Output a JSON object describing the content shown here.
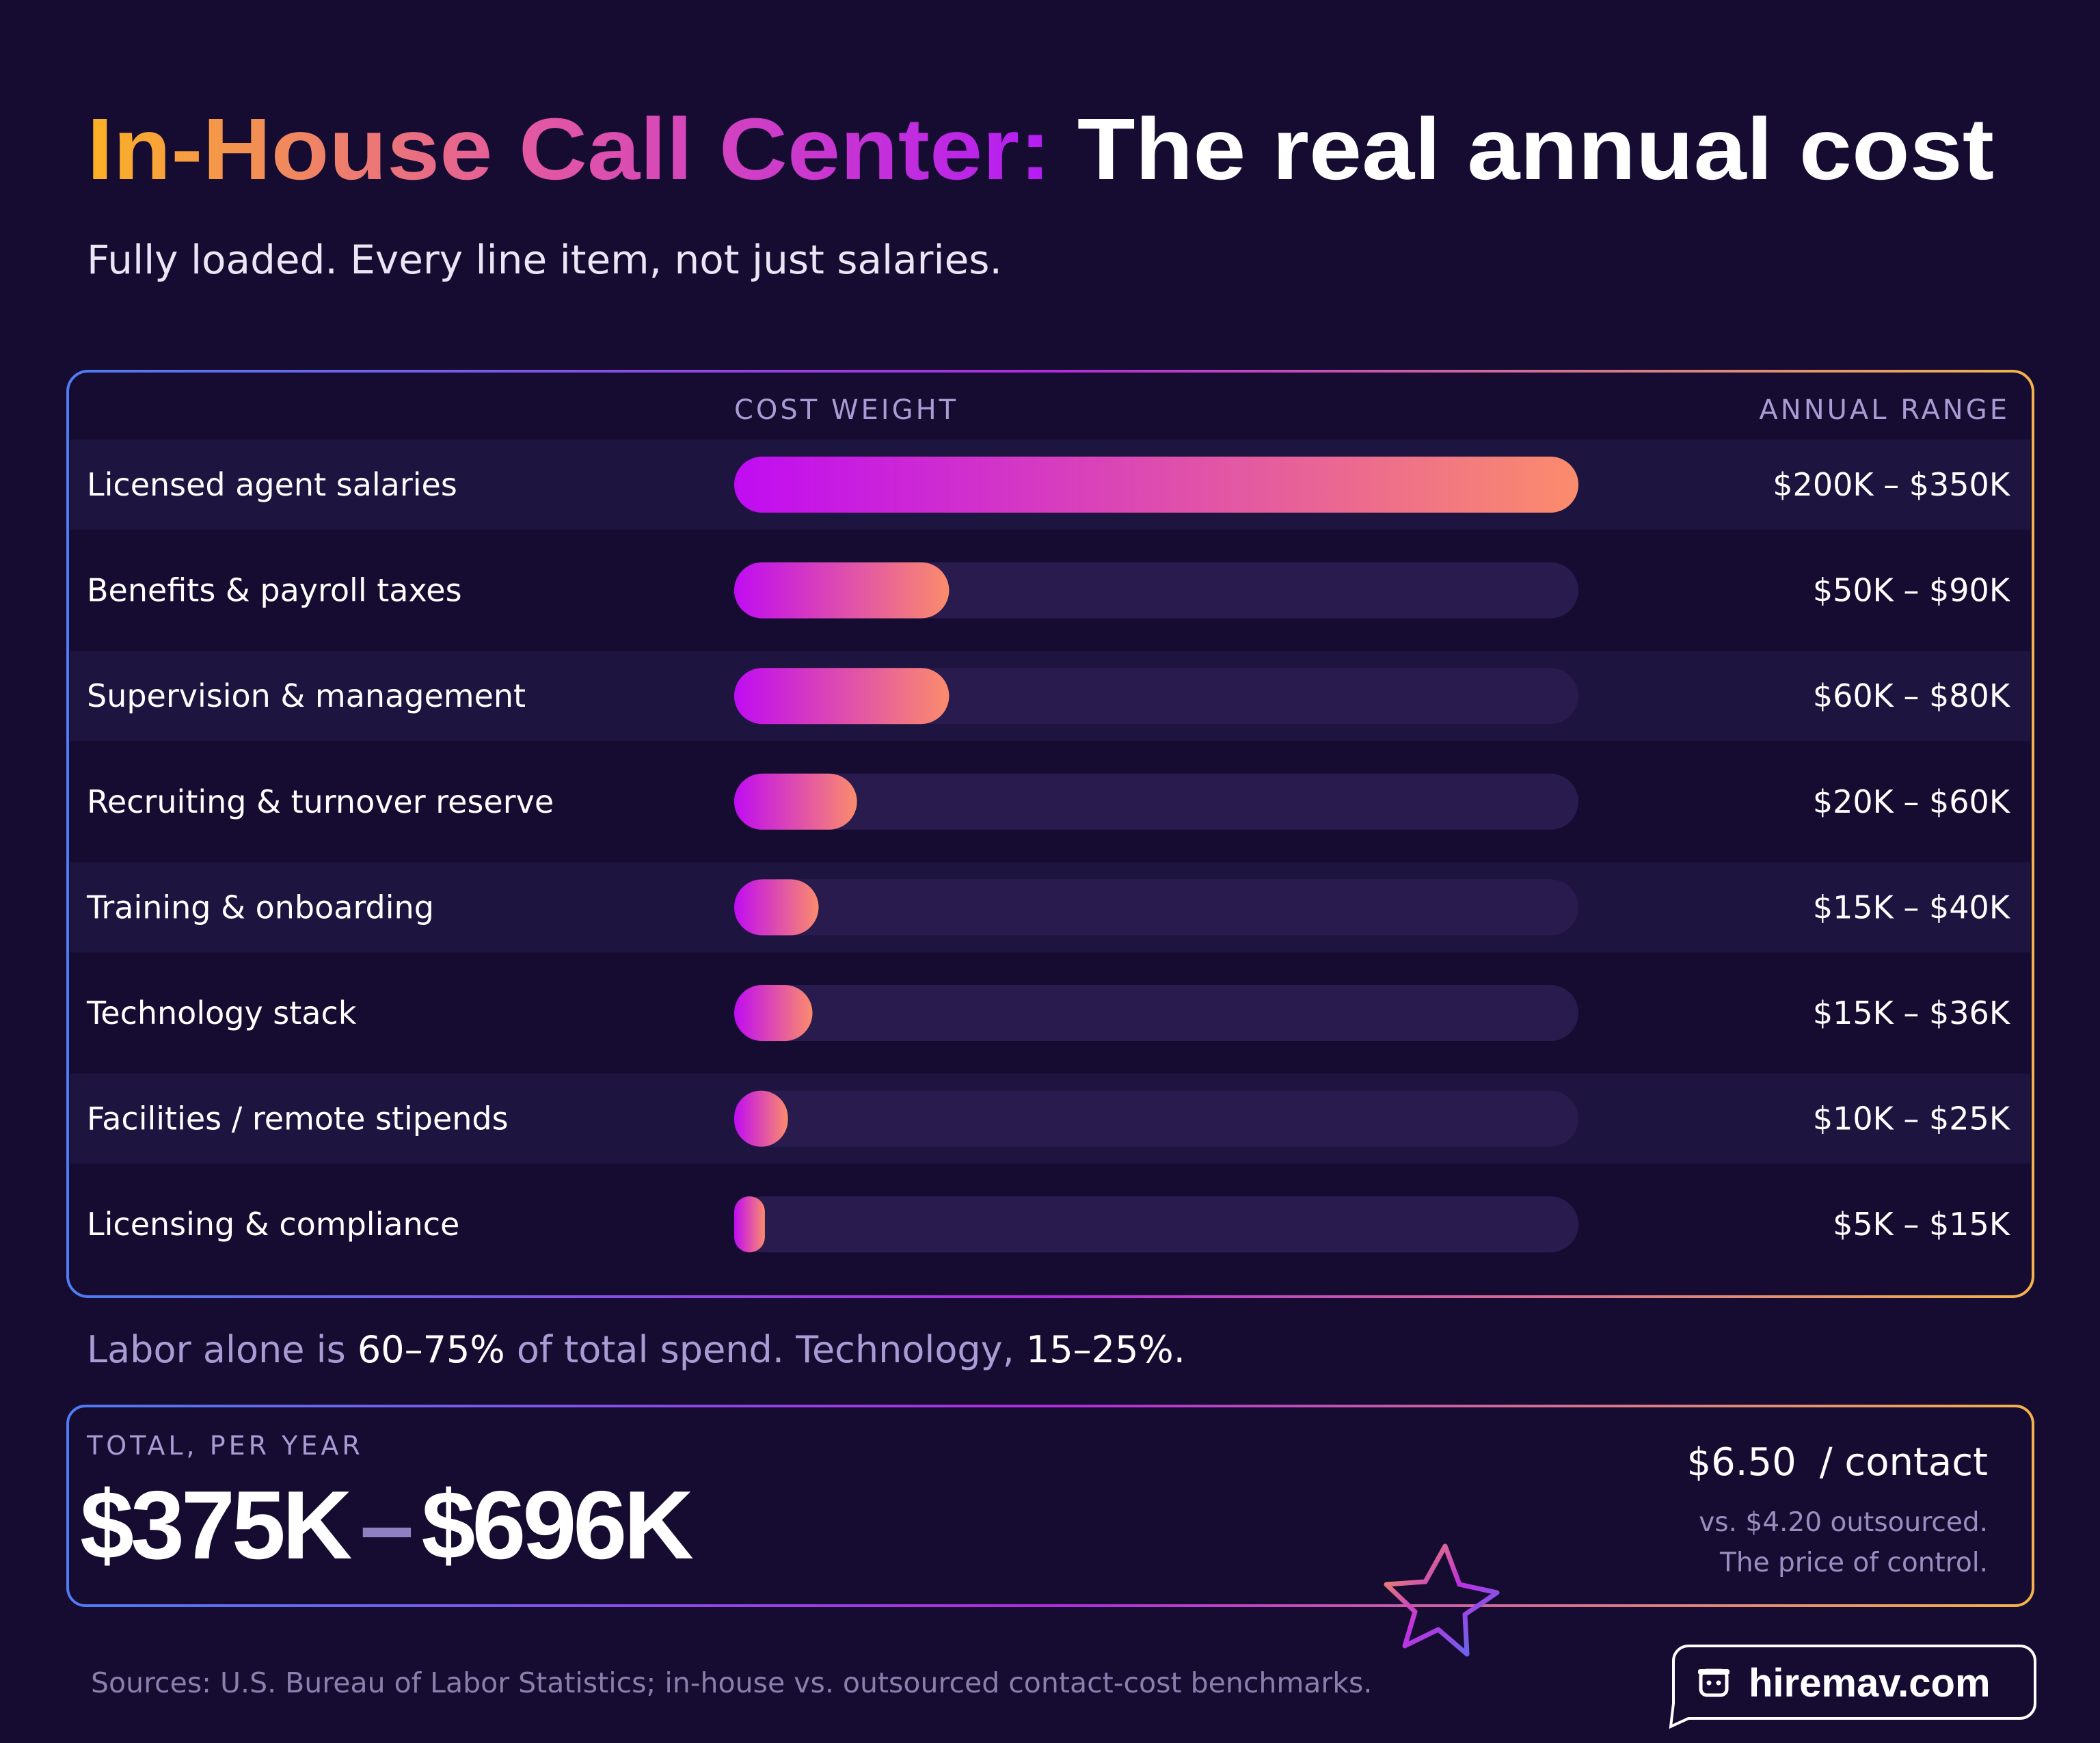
{
  "chart_data": {
    "type": "bar",
    "title_highlight": "In-House Call Center:",
    "title": "The real annual cost",
    "subtitle": "Fully loaded. Every line item, not just salaries.",
    "bar_header": "COST WEIGHT",
    "range_header": "ANNUAL RANGE",
    "categories": [
      "Licensed agent salaries",
      "Benefits & payroll taxes",
      "Supervision & management",
      "Recruiting & turnover reserve",
      "Training & onboarding",
      "Technology stack",
      "Facilities / remote stipends",
      "Licensing & compliance"
    ],
    "values": [
      275,
      70,
      70,
      40,
      27.5,
      25.5,
      17.5,
      10
    ],
    "ranges": [
      "$200K – $350K",
      "$50K – $90K",
      "$60K – $80K",
      "$20K – $60K",
      "$15K – $40K",
      "$15K – $36K",
      "$10K – $25K",
      "$5K – $15K"
    ],
    "xlim": [
      0,
      275
    ],
    "bar_colors": [
      "#c00cf2",
      "#fb8c6c"
    ],
    "track_color": "#2a1b4f",
    "note": [
      "Labor alone is ",
      "60–75%",
      " of total spend. Technology, ",
      "15–25%."
    ],
    "total_label": "TOTAL, PER YEAR",
    "total_low": "$375K",
    "total_separator": "–",
    "total_high": "$696K",
    "cost_per_contact": "$6.50",
    "per_contact_unit": "/ contact",
    "comparison": "vs. $4.20 outsourced.",
    "tagline": "The price of control.",
    "sources": "Sources: U.S. Bureau of Labor Statistics; in-house vs. outsourced contact-cost benchmarks.",
    "brand": "hiremav.com"
  }
}
